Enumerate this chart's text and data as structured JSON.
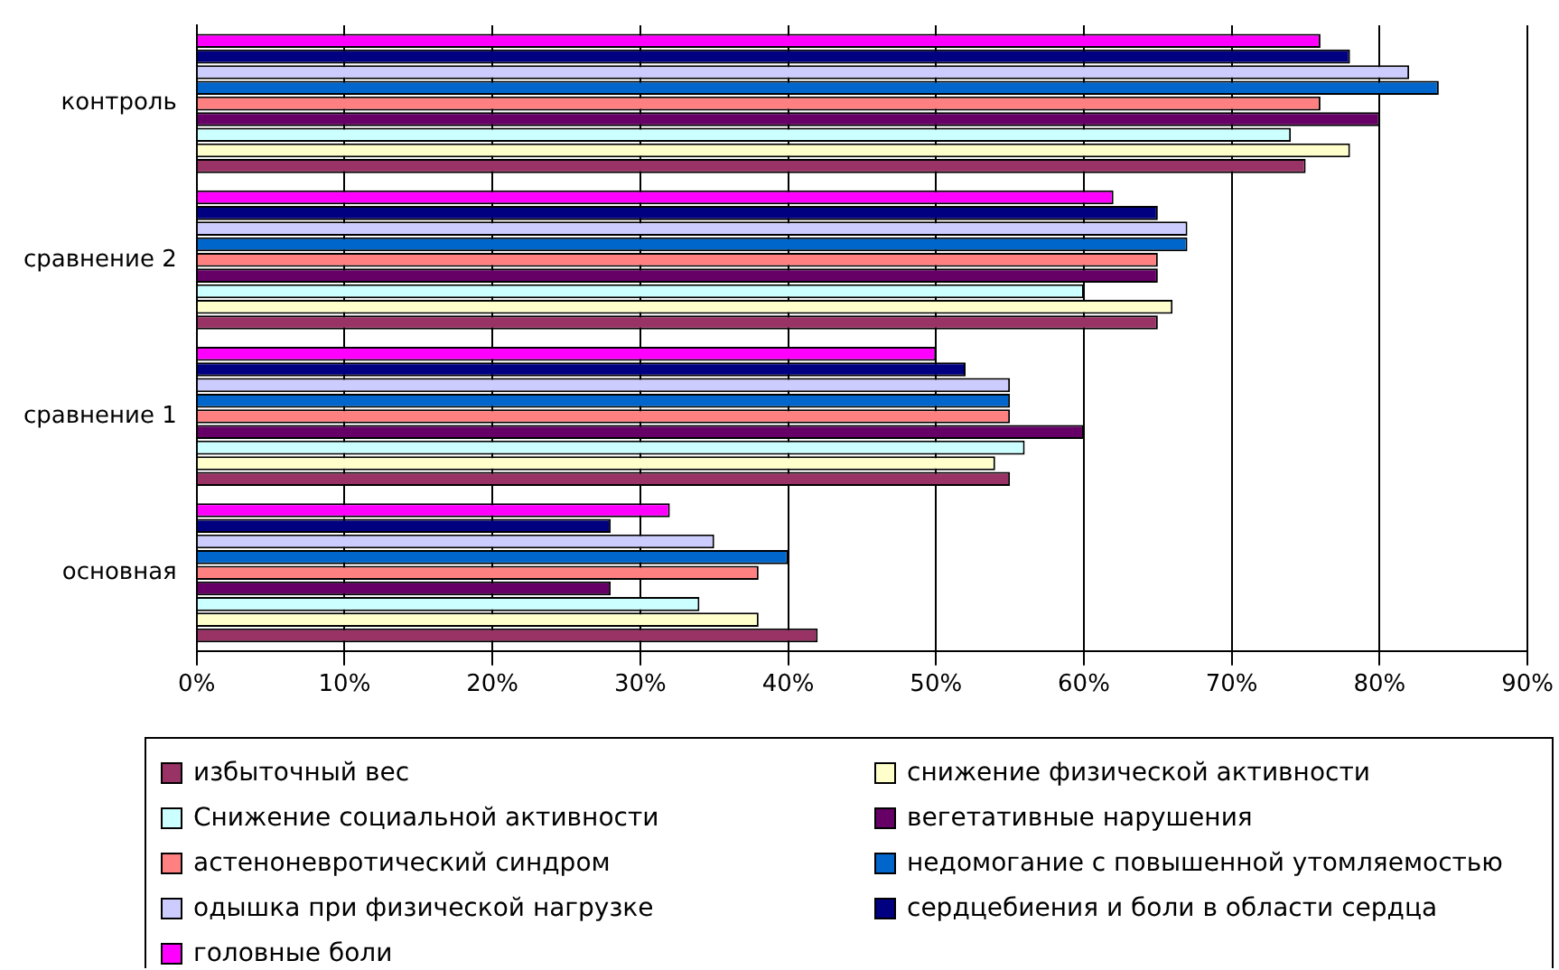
{
  "chart_data": {
    "type": "bar",
    "orientation": "horizontal",
    "categories": [
      "контроль",
      "сравнение 2",
      "сравнение 1",
      "основная"
    ],
    "series": [
      {
        "name": "избыточный вес",
        "color": "#993366",
        "values": [
          75,
          65,
          55,
          42
        ]
      },
      {
        "name": "снижение физической активности",
        "color": "#ffffcc",
        "values": [
          78,
          66,
          54,
          38
        ]
      },
      {
        "name": "Снижение социальной активности",
        "color": "#ccffff",
        "values": [
          74,
          60,
          56,
          34
        ]
      },
      {
        "name": "вегетативные нарушения",
        "color": "#660066",
        "values": [
          80,
          65,
          60,
          28
        ]
      },
      {
        "name": "астеноневротический синдром",
        "color": "#ff8080",
        "values": [
          76,
          65,
          55,
          38
        ]
      },
      {
        "name": "недомогание с повышенной утомляемостью",
        "color": "#0066cc",
        "values": [
          84,
          67,
          55,
          40
        ]
      },
      {
        "name": "одышка при физической нагрузке",
        "color": "#ccccff",
        "values": [
          82,
          67,
          55,
          35
        ]
      },
      {
        "name": "сердцебиения и боли в области сердца",
        "color": "#000080",
        "values": [
          78,
          65,
          52,
          28
        ]
      },
      {
        "name": "головные боли",
        "color": "#ff00ff",
        "values": [
          76,
          62,
          50,
          32
        ]
      }
    ],
    "xlim": [
      0,
      90
    ],
    "xticks": [
      {
        "value": 0,
        "label": "0%"
      },
      {
        "value": 10,
        "label": "10%"
      },
      {
        "value": 20,
        "label": "20%"
      },
      {
        "value": 30,
        "label": "30%"
      },
      {
        "value": 40,
        "label": "40%"
      },
      {
        "value": 50,
        "label": "50%"
      },
      {
        "value": 60,
        "label": "60%"
      },
      {
        "value": 70,
        "label": "70%"
      },
      {
        "value": 80,
        "label": "80%"
      },
      {
        "value": 90,
        "label": "90%"
      }
    ],
    "grid": "x",
    "legend": "bottom"
  }
}
